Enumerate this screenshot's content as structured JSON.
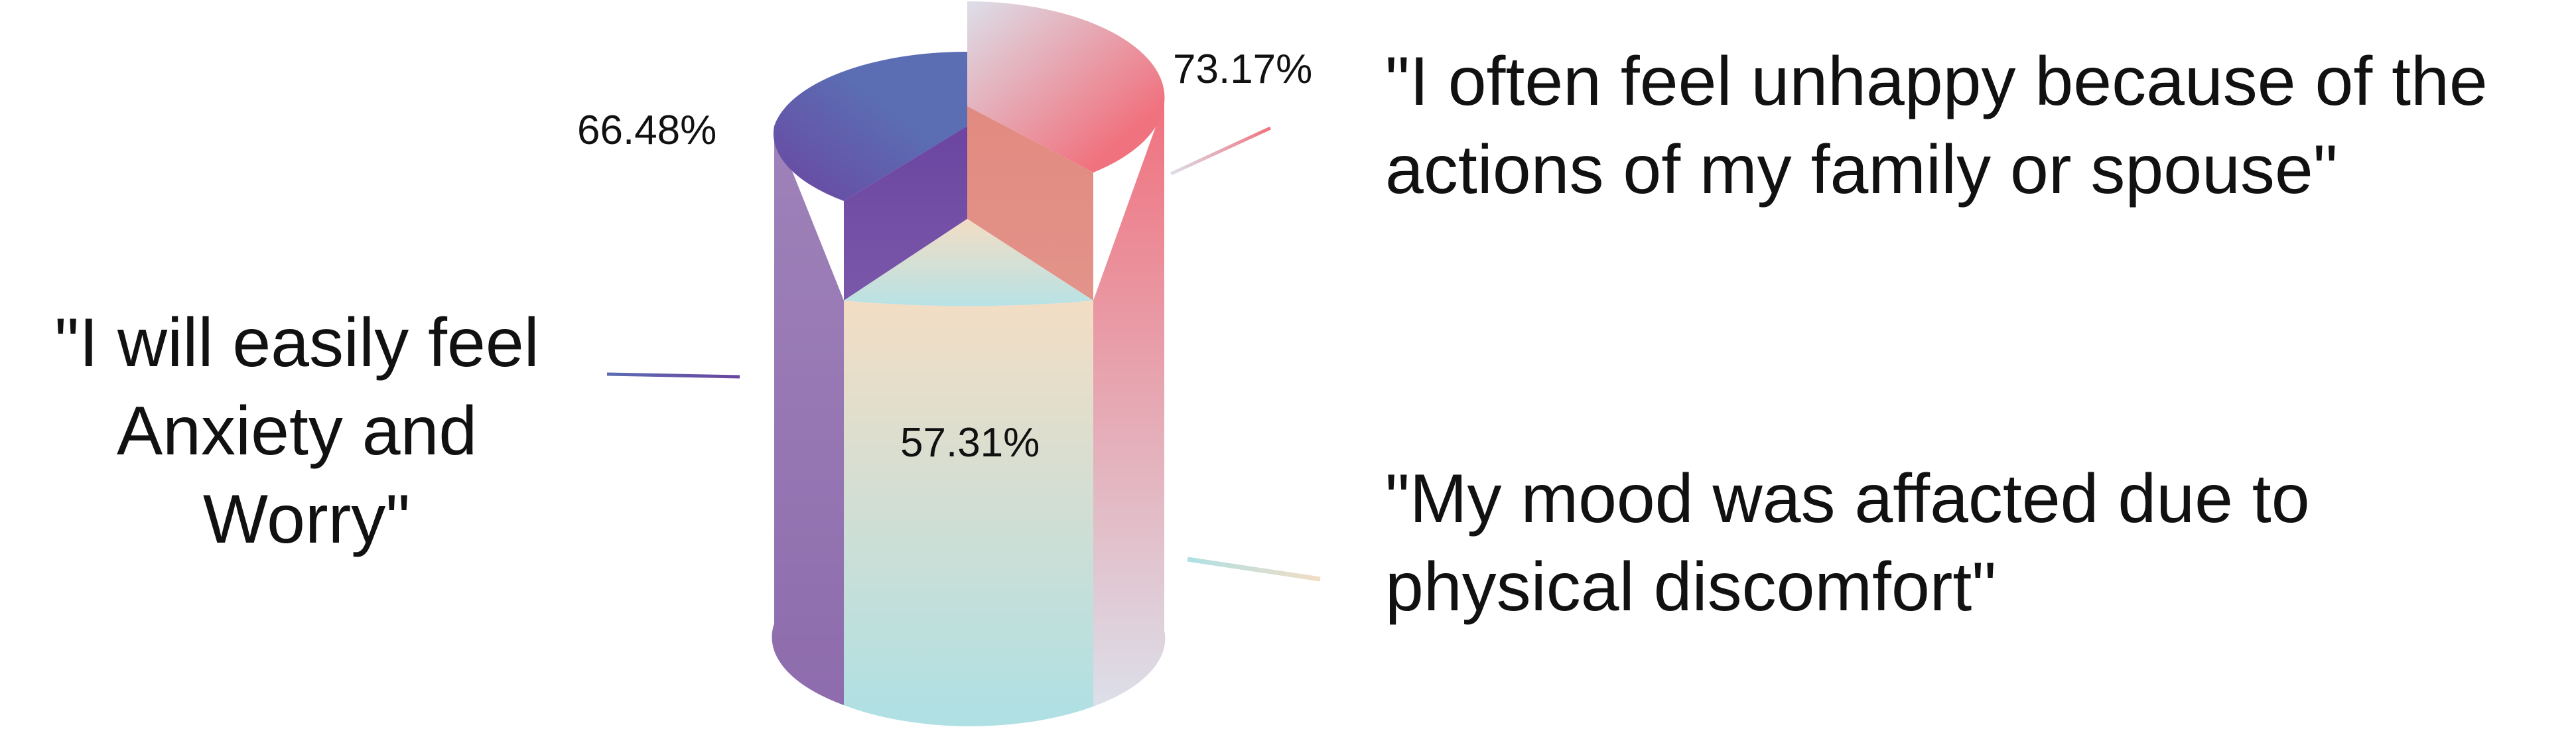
{
  "chart_data": {
    "type": "pie",
    "style": "3d-cylinder",
    "title": "",
    "slices": [
      {
        "value": 66.48,
        "value_label": "66.48%",
        "label_lines": [
          "\"I will easily feel",
          "Anxiety and",
          "Worry\""
        ],
        "colors": [
          "#5b6db3",
          "#8e6cad",
          "#6b45a0"
        ]
      },
      {
        "value": 73.17,
        "value_label": "73.17%",
        "label_lines": [
          "\"I often feel unhappy because of the",
          "actions of my family or spouse\""
        ],
        "colors": [
          "#f0727e",
          "#dcdfe9",
          "#e18a80"
        ]
      },
      {
        "value": 57.31,
        "value_label": "57.31%",
        "label_lines": [
          "\"My mood was affacted due to",
          "physical discomfort\""
        ],
        "colors": [
          "#f3ddc4",
          "#aee0e4",
          "#b8e2e5"
        ]
      }
    ]
  }
}
